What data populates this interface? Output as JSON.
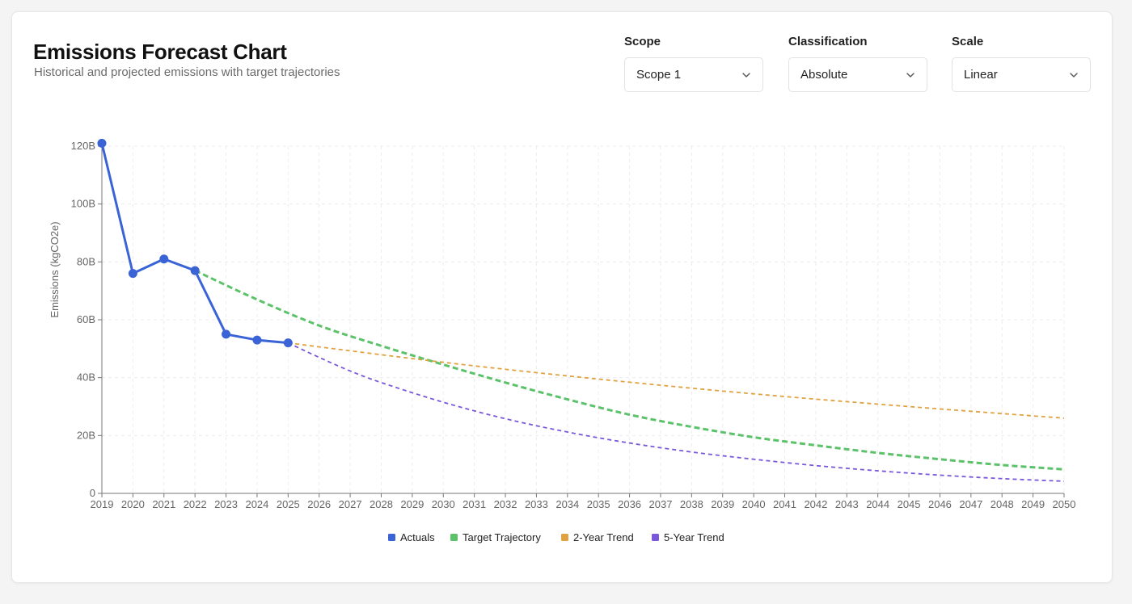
{
  "header": {
    "title": "Emissions Forecast Chart",
    "subtitle": "Historical and projected emissions with target trajectories"
  },
  "controls": [
    {
      "label": "Scope",
      "value": "Scope 1"
    },
    {
      "label": "Classification",
      "value": "Absolute"
    },
    {
      "label": "Scale",
      "value": "Linear"
    }
  ],
  "icons": {
    "dropdown": "chevron-down-icon"
  },
  "chart_data": {
    "type": "line",
    "title": "",
    "xlabel": "",
    "ylabel": "Emissions (kgCO2e)",
    "xlim": [
      2019,
      2050
    ],
    "ylim": [
      0,
      120
    ],
    "y_unit": "B",
    "yticks": [
      {
        "value": 0,
        "label": "0"
      },
      {
        "value": 20,
        "label": "20B"
      },
      {
        "value": 40,
        "label": "40B"
      },
      {
        "value": 60,
        "label": "60B"
      },
      {
        "value": 80,
        "label": "80B"
      },
      {
        "value": 100,
        "label": "100B"
      },
      {
        "value": 120,
        "label": "120B"
      }
    ],
    "xticks": [
      2019,
      2020,
      2021,
      2022,
      2023,
      2024,
      2025,
      2026,
      2027,
      2028,
      2029,
      2030,
      2031,
      2032,
      2033,
      2034,
      2035,
      2036,
      2037,
      2038,
      2039,
      2040,
      2041,
      2042,
      2043,
      2044,
      2045,
      2046,
      2047,
      2048,
      2049,
      2050
    ],
    "grid": true,
    "legend_position": "bottom",
    "series": [
      {
        "name": "Actuals",
        "color": "#3a63d6",
        "style": "solid",
        "markers": true,
        "x": [
          2019,
          2020,
          2021,
          2022,
          2023,
          2024,
          2025
        ],
        "y": [
          121,
          76,
          81,
          77,
          55,
          53,
          52
        ]
      },
      {
        "name": "Target Trajectory",
        "color": "#5cc26a",
        "style": "dashed",
        "markers": false,
        "x": [
          2022,
          2024,
          2026,
          2028,
          2030,
          2032,
          2034,
          2036,
          2038,
          2040,
          2042,
          2044,
          2046,
          2048,
          2050
        ],
        "y": [
          77,
          67,
          58,
          51,
          44.5,
          38.3,
          32.5,
          27.2,
          23,
          19.4,
          16.6,
          14,
          11.8,
          9.8,
          8.3
        ]
      },
      {
        "name": "2-Year Trend",
        "color": "#e0a240",
        "style": "dashed",
        "markers": false,
        "x": [
          2025,
          2030,
          2035,
          2040,
          2045,
          2050
        ],
        "y": [
          52,
          45.3,
          39.5,
          34.4,
          30,
          26
        ]
      },
      {
        "name": "5-Year Trend",
        "color": "#7b57d9",
        "style": "dashed",
        "markers": false,
        "x": [
          2025,
          2026,
          2027,
          2028,
          2030,
          2032,
          2034,
          2036,
          2038,
          2040,
          2042,
          2044,
          2046,
          2048,
          2050
        ],
        "y": [
          52,
          47,
          42.3,
          38.3,
          31.5,
          25.8,
          21.2,
          17.4,
          14.3,
          11.8,
          9.6,
          7.8,
          6.3,
          5.1,
          4.2
        ]
      }
    ]
  }
}
